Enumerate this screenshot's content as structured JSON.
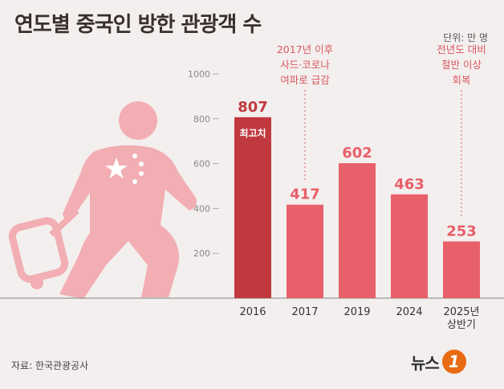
{
  "title": "연도별 중국인 방한 관광객 수",
  "unit": "단위: 만 명",
  "source": "자료: 한국관광공사",
  "logo": {
    "text": "뉴스",
    "mark": "1"
  },
  "colors": {
    "highlight": "#c0393f",
    "bar": "#e8606a",
    "annotation": "#d8585f",
    "silhouette": "#f2aeb3"
  },
  "chart_data": {
    "type": "bar",
    "categories": [
      "2016",
      "2017",
      "2019",
      "2024",
      "2025년|상반기"
    ],
    "values": [
      807,
      417,
      602,
      463,
      253
    ],
    "ylim": [
      0,
      1000
    ],
    "yticks": [
      200,
      400,
      600,
      800,
      1000
    ],
    "grid": false,
    "highlight_index": 0,
    "badge": {
      "index": 0,
      "text": "최고치"
    },
    "annotations": [
      {
        "index": 1,
        "lines": [
          "2017년 이후",
          "사드·코로나",
          "여파로 급감"
        ]
      },
      {
        "index": 4,
        "lines": [
          "전년도 대비",
          "절반 이상",
          "회복"
        ]
      }
    ]
  }
}
